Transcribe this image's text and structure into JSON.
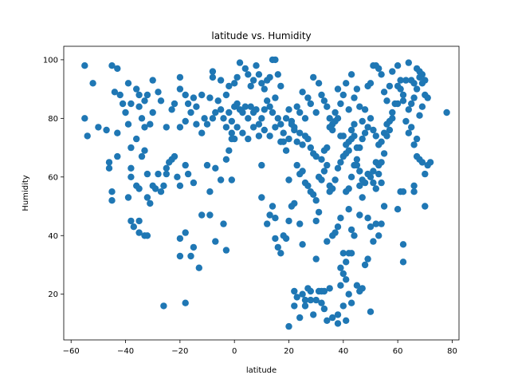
{
  "chart_data": {
    "type": "scatter",
    "title": "latitude vs. Humidity",
    "xlabel": "latitude",
    "ylabel": "Humidity",
    "xlim": [
      -62.7,
      82.5
    ],
    "ylim": [
      4.4,
      104.6
    ],
    "xticks": [
      -60,
      -40,
      -20,
      0,
      20,
      40,
      60,
      80
    ],
    "yticks": [
      20,
      40,
      60,
      80,
      100
    ],
    "grid": false,
    "legend": "none",
    "marker_color": "#1f77b4",
    "points": [
      [
        -55,
        98
      ],
      [
        -52,
        92
      ],
      [
        -54,
        74
      ],
      [
        -55,
        80
      ],
      [
        -50,
        77
      ],
      [
        -47,
        76
      ],
      [
        -45,
        98
      ],
      [
        -43,
        97
      ],
      [
        -44,
        89
      ],
      [
        -42,
        88
      ],
      [
        -46,
        65
      ],
      [
        -46,
        63
      ],
      [
        -45,
        55
      ],
      [
        -45,
        52
      ],
      [
        -43,
        67
      ],
      [
        -43,
        75
      ],
      [
        -41,
        85
      ],
      [
        -39,
        92
      ],
      [
        -39,
        78
      ],
      [
        -40,
        82
      ],
      [
        -38,
        85
      ],
      [
        -36,
        90
      ],
      [
        -35,
        88
      ],
      [
        -33,
        86
      ],
      [
        -32,
        88
      ],
      [
        -30,
        93
      ],
      [
        -28,
        89
      ],
      [
        -27,
        86
      ],
      [
        -35,
        84
      ],
      [
        -34,
        80
      ],
      [
        -33,
        77
      ],
      [
        -31,
        78
      ],
      [
        -30,
        82
      ],
      [
        -36,
        73
      ],
      [
        -34,
        67
      ],
      [
        -33,
        69
      ],
      [
        -38,
        70
      ],
      [
        -38,
        63
      ],
      [
        -38,
        60
      ],
      [
        -36,
        57
      ],
      [
        -35,
        56
      ],
      [
        -32,
        61
      ],
      [
        -32,
        53
      ],
      [
        -30,
        57
      ],
      [
        -29,
        56
      ],
      [
        -31,
        51
      ],
      [
        -28,
        61
      ],
      [
        -27,
        55
      ],
      [
        -26,
        57
      ],
      [
        -25,
        61
      ],
      [
        -25,
        63
      ],
      [
        -24,
        65
      ],
      [
        -23,
        66
      ],
      [
        -22,
        67
      ],
      [
        -39,
        53
      ],
      [
        -38,
        45
      ],
      [
        -37,
        43
      ],
      [
        -35,
        45
      ],
      [
        -35,
        41
      ],
      [
        -33,
        40
      ],
      [
        -32,
        40
      ],
      [
        -26,
        16
      ],
      [
        -18,
        17
      ],
      [
        -20,
        33
      ],
      [
        -20,
        39
      ],
      [
        -18,
        41
      ],
      [
        -16,
        33
      ],
      [
        -15,
        36
      ],
      [
        -13,
        29
      ],
      [
        -12,
        47
      ],
      [
        -9,
        47
      ],
      [
        -7,
        38
      ],
      [
        -4,
        44
      ],
      [
        -3,
        35
      ],
      [
        -20,
        94
      ],
      [
        -20,
        90
      ],
      [
        -18,
        88
      ],
      [
        -17,
        85
      ],
      [
        -15,
        87
      ],
      [
        -14,
        84
      ],
      [
        -12,
        88
      ],
      [
        -16,
        82
      ],
      [
        -18,
        79
      ],
      [
        -20,
        77
      ],
      [
        -22,
        85
      ],
      [
        -23,
        83
      ],
      [
        -25,
        77
      ],
      [
        -14,
        78
      ],
      [
        -12,
        75
      ],
      [
        -11,
        80
      ],
      [
        -10,
        78
      ],
      [
        -8,
        80
      ],
      [
        -7,
        82
      ],
      [
        -9,
        87
      ],
      [
        -8,
        94
      ],
      [
        -8,
        96
      ],
      [
        -5,
        93
      ],
      [
        -3,
        88
      ],
      [
        -2,
        91
      ],
      [
        0,
        92
      ],
      [
        1,
        94
      ],
      [
        2,
        99
      ],
      [
        4,
        97
      ],
      [
        5,
        95
      ],
      [
        6,
        91
      ],
      [
        7,
        93
      ],
      [
        8,
        98
      ],
      [
        9,
        95
      ],
      [
        10,
        92
      ],
      [
        11,
        90
      ],
      [
        12,
        93
      ],
      [
        13,
        94
      ],
      [
        14,
        100
      ],
      [
        15,
        100
      ],
      [
        16,
        95
      ],
      [
        17,
        91
      ],
      [
        -6,
        86
      ],
      [
        -5,
        83
      ],
      [
        -4,
        80
      ],
      [
        -3,
        77
      ],
      [
        -2,
        82
      ],
      [
        -1,
        79
      ],
      [
        0,
        84
      ],
      [
        1,
        85
      ],
      [
        2,
        83
      ],
      [
        3,
        82
      ],
      [
        4,
        84
      ],
      [
        5,
        80
      ],
      [
        6,
        84
      ],
      [
        7,
        82
      ],
      [
        8,
        83
      ],
      [
        9,
        78
      ],
      [
        10,
        80
      ],
      [
        11,
        83
      ],
      [
        12,
        86
      ],
      [
        13,
        84
      ],
      [
        14,
        82
      ],
      [
        15,
        87
      ],
      [
        16,
        80
      ],
      [
        17,
        78
      ],
      [
        -1,
        75
      ],
      [
        0,
        73
      ],
      [
        1,
        77
      ],
      [
        3,
        75
      ],
      [
        5,
        73
      ],
      [
        7,
        77
      ],
      [
        9,
        74
      ],
      [
        11,
        76
      ],
      [
        13,
        74
      ],
      [
        15,
        77
      ],
      [
        17,
        72
      ],
      [
        18,
        75
      ],
      [
        19,
        80
      ],
      [
        20,
        83
      ],
      [
        21,
        79
      ],
      [
        22,
        76
      ],
      [
        23,
        84
      ],
      [
        24,
        82
      ],
      [
        25,
        89
      ],
      [
        26,
        80
      ],
      [
        27,
        87
      ],
      [
        28,
        85
      ],
      [
        29,
        94
      ],
      [
        30,
        82
      ],
      [
        31,
        92
      ],
      [
        32,
        88
      ],
      [
        33,
        86
      ],
      [
        34,
        84
      ],
      [
        35,
        80
      ],
      [
        36,
        78
      ],
      [
        37,
        82
      ],
      [
        38,
        90
      ],
      [
        39,
        85
      ],
      [
        40,
        88
      ],
      [
        41,
        92
      ],
      [
        42,
        83
      ],
      [
        43,
        95
      ],
      [
        44,
        87
      ],
      [
        45,
        90
      ],
      [
        46,
        84
      ],
      [
        47,
        79
      ],
      [
        48,
        83
      ],
      [
        49,
        91
      ],
      [
        50,
        92
      ],
      [
        51,
        98
      ],
      [
        52,
        98
      ],
      [
        53,
        97
      ],
      [
        54,
        95
      ],
      [
        55,
        89
      ],
      [
        56,
        86
      ],
      [
        57,
        91
      ],
      [
        58,
        96
      ],
      [
        59,
        85
      ],
      [
        60,
        98
      ],
      [
        61,
        90
      ],
      [
        62,
        86
      ],
      [
        63,
        93
      ],
      [
        64,
        99
      ],
      [
        65,
        93
      ],
      [
        66,
        92
      ],
      [
        67,
        97
      ],
      [
        68,
        96
      ],
      [
        69,
        95
      ],
      [
        70,
        93
      ],
      [
        71,
        87
      ],
      [
        72,
        65
      ],
      [
        78,
        82
      ],
      [
        -10,
        64
      ],
      [
        -7,
        63
      ],
      [
        -5,
        59
      ],
      [
        -1,
        59
      ],
      [
        -2,
        69
      ],
      [
        -3,
        66
      ],
      [
        -1,
        73
      ],
      [
        10,
        64
      ],
      [
        10,
        53
      ],
      [
        12,
        44
      ],
      [
        13,
        47
      ],
      [
        14,
        50
      ],
      [
        15,
        46
      ],
      [
        15,
        39
      ],
      [
        16,
        36
      ],
      [
        17,
        34
      ],
      [
        18,
        40
      ],
      [
        19,
        39
      ],
      [
        20,
        45
      ],
      [
        21,
        50
      ],
      [
        22,
        51
      ],
      [
        23,
        64
      ],
      [
        24,
        61
      ],
      [
        25,
        62
      ],
      [
        26,
        58
      ],
      [
        27,
        57
      ],
      [
        28,
        55
      ],
      [
        29,
        54
      ],
      [
        30,
        52
      ],
      [
        31,
        48
      ],
      [
        32,
        59
      ],
      [
        33,
        62
      ],
      [
        34,
        64
      ],
      [
        35,
        57
      ],
      [
        36,
        56
      ],
      [
        37,
        59
      ],
      [
        38,
        63
      ],
      [
        39,
        65
      ],
      [
        40,
        67
      ],
      [
        41,
        71
      ],
      [
        42,
        69
      ],
      [
        43,
        73
      ],
      [
        44,
        74
      ],
      [
        45,
        64
      ],
      [
        46,
        57
      ],
      [
        47,
        53
      ],
      [
        48,
        58
      ],
      [
        49,
        61
      ],
      [
        50,
        60
      ],
      [
        51,
        62
      ],
      [
        52,
        65
      ],
      [
        53,
        64
      ],
      [
        54,
        58
      ],
      [
        55,
        50
      ],
      [
        52,
        44
      ],
      [
        53,
        40
      ],
      [
        54,
        44
      ],
      [
        51,
        38
      ],
      [
        49,
        46
      ],
      [
        50,
        43
      ],
      [
        46,
        47
      ],
      [
        44,
        40
      ],
      [
        43,
        42
      ],
      [
        42,
        49
      ],
      [
        41,
        55
      ],
      [
        42,
        56
      ],
      [
        39,
        46
      ],
      [
        38,
        43
      ],
      [
        37,
        41
      ],
      [
        36,
        40
      ],
      [
        40,
        34
      ],
      [
        41,
        31
      ],
      [
        42,
        34
      ],
      [
        43,
        34
      ],
      [
        39,
        29
      ],
      [
        40,
        27
      ],
      [
        41,
        25
      ],
      [
        42,
        20
      ],
      [
        43,
        17
      ],
      [
        45,
        23
      ],
      [
        46,
        21
      ],
      [
        47,
        22
      ],
      [
        48,
        30
      ],
      [
        49,
        32
      ],
      [
        50,
        14
      ],
      [
        41,
        11
      ],
      [
        38,
        10
      ],
      [
        38,
        13
      ],
      [
        36,
        12
      ],
      [
        34,
        11
      ],
      [
        33,
        15
      ],
      [
        32,
        17
      ],
      [
        30,
        18
      ],
      [
        29,
        13
      ],
      [
        28,
        21
      ],
      [
        27,
        22
      ],
      [
        26,
        18
      ],
      [
        25,
        20
      ],
      [
        24,
        12
      ],
      [
        23,
        19
      ],
      [
        22,
        16
      ],
      [
        22,
        21
      ],
      [
        20,
        9
      ],
      [
        31,
        21
      ],
      [
        32,
        21
      ],
      [
        33,
        21
      ],
      [
        35,
        22
      ],
      [
        39,
        23
      ],
      [
        40,
        16
      ],
      [
        26,
        16
      ],
      [
        28,
        18
      ],
      [
        60,
        49
      ],
      [
        61,
        55
      ],
      [
        62,
        55
      ],
      [
        62,
        37
      ],
      [
        62,
        31
      ],
      [
        66,
        55
      ],
      [
        66,
        57
      ],
      [
        67,
        67
      ],
      [
        68,
        66
      ],
      [
        69,
        65
      ],
      [
        70,
        50
      ],
      [
        70,
        61
      ],
      [
        71,
        64
      ],
      [
        64,
        75
      ],
      [
        65,
        77
      ],
      [
        66,
        71
      ],
      [
        67,
        73
      ],
      [
        68,
        81
      ],
      [
        69,
        84
      ],
      [
        70,
        88
      ],
      [
        60,
        85
      ],
      [
        58,
        80
      ],
      [
        57,
        76
      ],
      [
        56,
        78
      ],
      [
        55,
        75
      ],
      [
        54,
        72
      ],
      [
        53,
        71
      ],
      [
        52,
        74
      ],
      [
        51,
        76
      ],
      [
        50,
        80
      ],
      [
        49,
        77
      ],
      [
        48,
        75
      ],
      [
        47,
        73
      ],
      [
        46,
        70
      ],
      [
        45,
        70
      ],
      [
        44,
        78
      ],
      [
        43,
        76
      ],
      [
        42,
        72
      ],
      [
        41,
        68
      ],
      [
        40,
        74
      ],
      [
        39,
        74
      ],
      [
        38,
        80
      ],
      [
        37,
        79
      ],
      [
        36,
        76
      ],
      [
        35,
        77
      ],
      [
        34,
        70
      ],
      [
        33,
        69
      ],
      [
        32,
        66
      ],
      [
        31,
        60
      ],
      [
        30,
        67
      ],
      [
        29,
        68
      ],
      [
        28,
        70
      ],
      [
        27,
        73
      ],
      [
        26,
        74
      ],
      [
        25,
        71
      ],
      [
        24,
        75
      ],
      [
        23,
        72
      ],
      [
        22,
        77
      ],
      [
        21,
        78
      ],
      [
        20,
        73
      ],
      [
        19,
        69
      ],
      [
        18,
        72
      ],
      [
        60,
        91
      ],
      [
        61,
        93
      ],
      [
        62,
        88
      ],
      [
        63,
        79
      ],
      [
        64,
        83
      ],
      [
        65,
        85
      ],
      [
        66,
        87
      ],
      [
        67,
        90
      ],
      [
        68,
        94
      ],
      [
        69,
        92
      ],
      [
        58,
        82
      ],
      [
        57,
        79
      ],
      [
        56,
        74
      ],
      [
        55,
        68
      ],
      [
        54,
        65
      ],
      [
        53,
        61
      ],
      [
        52,
        56
      ],
      [
        51,
        58
      ],
      [
        47,
        59
      ],
      [
        46,
        62
      ],
      [
        45,
        66
      ],
      [
        44,
        64
      ],
      [
        43,
        60
      ],
      [
        30,
        32
      ],
      [
        34,
        38
      ],
      [
        35,
        55
      ],
      [
        30,
        45
      ],
      [
        25,
        37
      ],
      [
        24,
        44
      ],
      [
        20,
        59
      ],
      [
        -20,
        57
      ],
      [
        -21,
        60
      ],
      [
        -18,
        64
      ],
      [
        -17,
        61
      ],
      [
        -15,
        58
      ],
      [
        -9,
        55
      ]
    ]
  }
}
